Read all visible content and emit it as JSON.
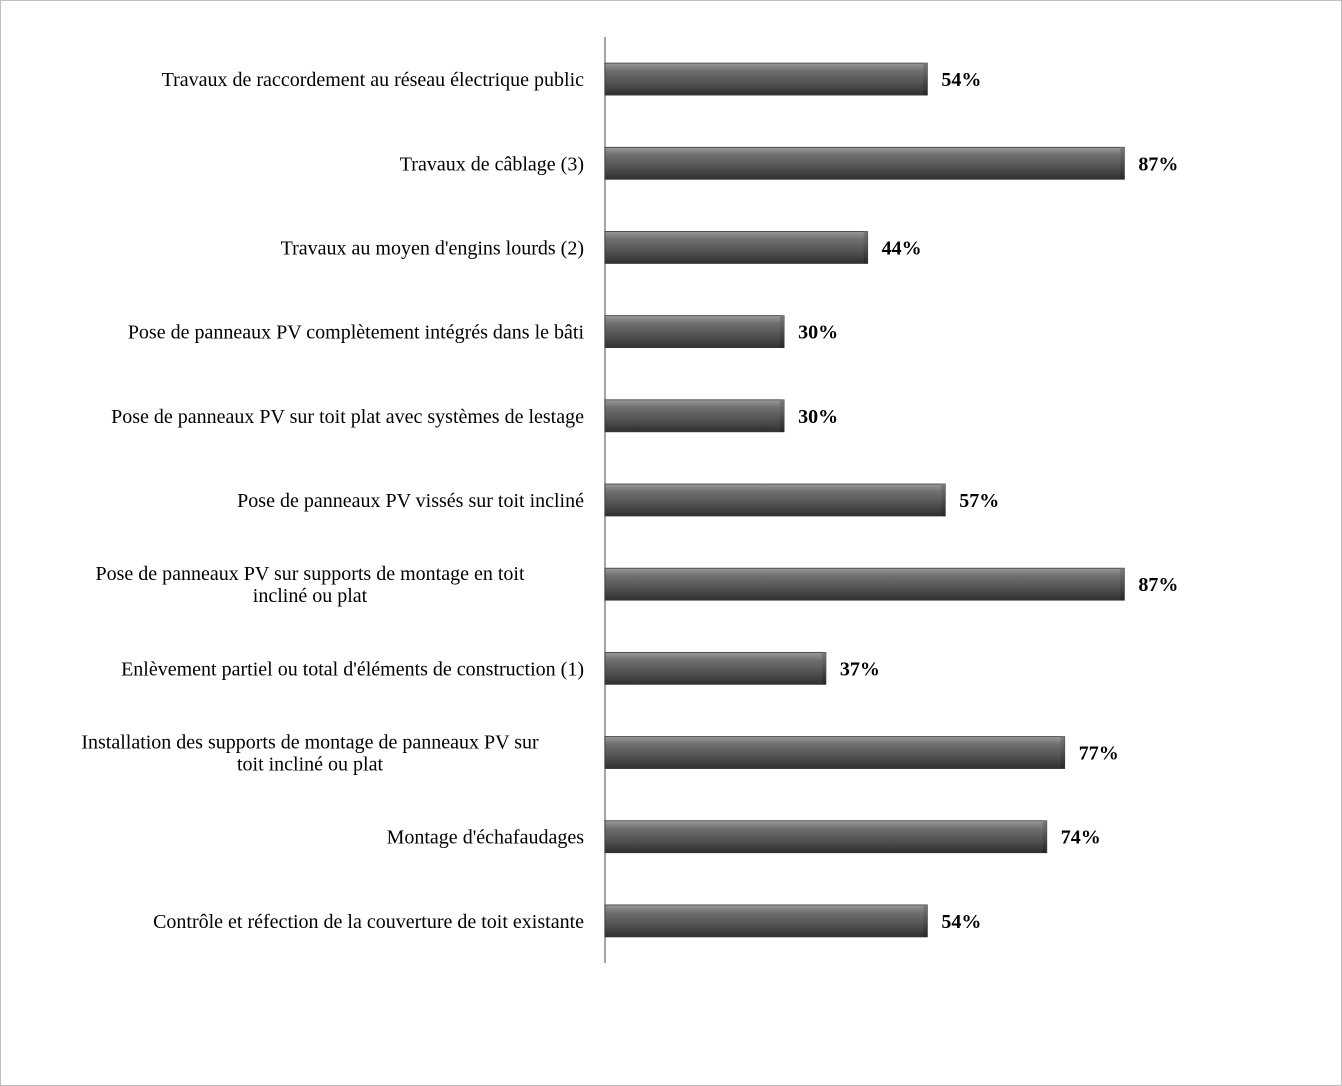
{
  "chart_data": {
    "type": "bar",
    "orientation": "horizontal",
    "title": "",
    "xlabel": "",
    "ylabel": "",
    "xlim": [
      0,
      100
    ],
    "grid": false,
    "legend": "none",
    "bar_color": "#555555",
    "categories": [
      [
        "Travaux de raccordement au réseau électrique public"
      ],
      [
        "Travaux de câblage (3)"
      ],
      [
        "Travaux au moyen d'engins lourds (2)"
      ],
      [
        "Pose de panneaux PV  complètement intégrés dans le bâti"
      ],
      [
        "Pose de panneaux PV sur toit plat avec systèmes de lestage"
      ],
      [
        "Pose de panneaux PV vissés sur toit incliné"
      ],
      [
        "Pose de panneaux PV  sur supports de montage en toit",
        "incliné ou plat"
      ],
      [
        "Enlèvement partiel ou total d'éléments de construction (1)"
      ],
      [
        "Installation des supports de montage de panneaux PV sur",
        "toit incliné ou plat"
      ],
      [
        "Montage d'échafaudages"
      ],
      [
        "Contrôle et réfection de la couverture de toit existante"
      ]
    ],
    "values": [
      54,
      87,
      44,
      30,
      30,
      57,
      87,
      37,
      77,
      74,
      54
    ],
    "value_labels": [
      "54%",
      "87%",
      "44%",
      "30%",
      "30%",
      "57%",
      "87%",
      "37%",
      "77%",
      "74%",
      "54%"
    ]
  }
}
